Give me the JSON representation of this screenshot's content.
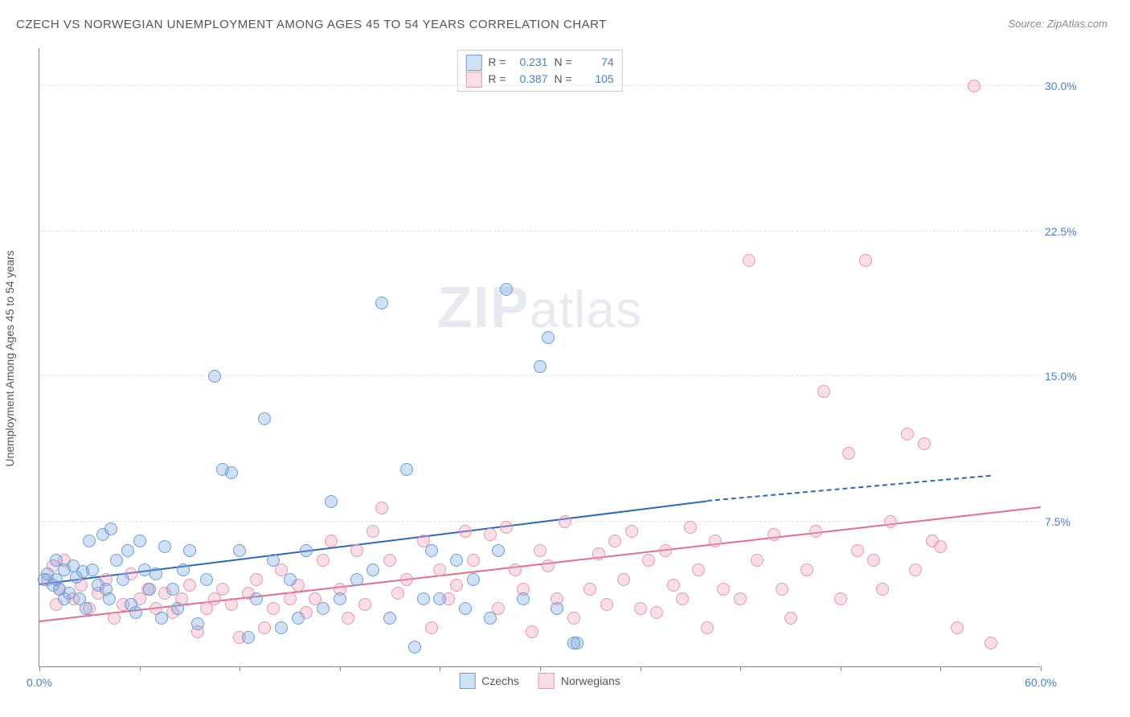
{
  "title": "CZECH VS NORWEGIAN UNEMPLOYMENT AMONG AGES 45 TO 54 YEARS CORRELATION CHART",
  "source_label": "Source:",
  "source_name": "ZipAtlas.com",
  "y_axis_label": "Unemployment Among Ages 45 to 54 years",
  "watermark_bold": "ZIP",
  "watermark_rest": "atlas",
  "chart": {
    "type": "scatter",
    "xlim": [
      0,
      60
    ],
    "ylim": [
      0,
      32
    ],
    "x_ticks": [
      0,
      6,
      12,
      18,
      24,
      30,
      36,
      42,
      48,
      54,
      60
    ],
    "x_tick_labels": {
      "0": "0.0%",
      "60": "60.0%"
    },
    "y_ticks": [
      7.5,
      15.0,
      22.5,
      30.0
    ],
    "y_tick_labels": [
      "7.5%",
      "15.0%",
      "22.5%",
      "30.0%"
    ],
    "background_color": "#ffffff",
    "grid_color": "#e0e0e0",
    "axis_color": "#888888",
    "tick_label_color": "#4a7fc9",
    "marker_radius": 8,
    "marker_stroke_width": 1.5,
    "title_color": "#555555",
    "title_fontsize": 15
  },
  "series": {
    "czechs": {
      "label": "Czechs",
      "fill_color": "rgba(120,165,225,0.35)",
      "stroke_color": "#6f9cd6",
      "trend": {
        "x0": 0,
        "y0": 4.2,
        "x1": 40,
        "y1": 8.5,
        "x1_dash": 57,
        "y1_dash": 9.8,
        "color": "#2f66b6",
        "width": 2
      },
      "stats": {
        "r": "0.231",
        "n": "74"
      },
      "points": [
        [
          1,
          4.5
        ],
        [
          1.2,
          4.0
        ],
        [
          1.5,
          5.0
        ],
        [
          1.8,
          3.8
        ],
        [
          2,
          5.2
        ],
        [
          2.2,
          4.6
        ],
        [
          2.4,
          3.5
        ],
        [
          2.6,
          4.9
        ],
        [
          3,
          6.5
        ],
        [
          3.2,
          5.0
        ],
        [
          3.5,
          4.2
        ],
        [
          3.8,
          6.8
        ],
        [
          4,
          4.0
        ],
        [
          4.3,
          7.1
        ],
        [
          4.6,
          5.5
        ],
        [
          5,
          4.5
        ],
        [
          5.3,
          6.0
        ],
        [
          5.5,
          3.2
        ],
        [
          6,
          6.5
        ],
        [
          6.3,
          5.0
        ],
        [
          6.6,
          4.0
        ],
        [
          7,
          4.8
        ],
        [
          7.3,
          2.5
        ],
        [
          7.5,
          6.2
        ],
        [
          8,
          4.0
        ],
        [
          8.3,
          3.0
        ],
        [
          8.6,
          5.0
        ],
        [
          9,
          6.0
        ],
        [
          9.5,
          2.2
        ],
        [
          10,
          4.5
        ],
        [
          10.5,
          15.0
        ],
        [
          11,
          10.2
        ],
        [
          11.5,
          10.0
        ],
        [
          12,
          6.0
        ],
        [
          12.5,
          1.5
        ],
        [
          13,
          3.5
        ],
        [
          13.5,
          12.8
        ],
        [
          14,
          5.5
        ],
        [
          14.5,
          2.0
        ],
        [
          15,
          4.5
        ],
        [
          15.5,
          2.5
        ],
        [
          16,
          6.0
        ],
        [
          17,
          3.0
        ],
        [
          17.5,
          8.5
        ],
        [
          18,
          3.5
        ],
        [
          19,
          4.5
        ],
        [
          20,
          5.0
        ],
        [
          20.5,
          18.8
        ],
        [
          21,
          2.5
        ],
        [
          22,
          10.2
        ],
        [
          22.5,
          1.0
        ],
        [
          23,
          3.5
        ],
        [
          23.5,
          6.0
        ],
        [
          24,
          3.5
        ],
        [
          25,
          5.5
        ],
        [
          25.5,
          3.0
        ],
        [
          26,
          4.5
        ],
        [
          27,
          2.5
        ],
        [
          27.5,
          6.0
        ],
        [
          28,
          19.5
        ],
        [
          29,
          3.5
        ],
        [
          30,
          15.5
        ],
        [
          30.5,
          17.0
        ],
        [
          31,
          3.0
        ],
        [
          32,
          1.2
        ],
        [
          32.2,
          1.2
        ],
        [
          4.2,
          3.5
        ],
        [
          5.8,
          2.8
        ],
        [
          2.8,
          3.0
        ],
        [
          1.5,
          3.5
        ],
        [
          0.8,
          4.2
        ],
        [
          0.5,
          4.8
        ],
        [
          1.0,
          5.5
        ],
        [
          0.3,
          4.5
        ]
      ]
    },
    "norwegians": {
      "label": "Norwegians",
      "fill_color": "rgba(240,160,185,0.35)",
      "stroke_color": "#e497ad",
      "trend": {
        "x0": 0,
        "y0": 2.3,
        "x1": 60,
        "y1": 8.2,
        "color": "#e06e8e",
        "width": 2
      },
      "stats": {
        "r": "0.387",
        "n": "105"
      },
      "points": [
        [
          0.5,
          4.5
        ],
        [
          0.8,
          5.2
        ],
        [
          1,
          3.2
        ],
        [
          1.2,
          4.0
        ],
        [
          1.5,
          5.5
        ],
        [
          2,
          3.5
        ],
        [
          2.5,
          4.2
        ],
        [
          3,
          3.0
        ],
        [
          3.5,
          3.8
        ],
        [
          4,
          4.5
        ],
        [
          4.5,
          2.5
        ],
        [
          5,
          3.2
        ],
        [
          5.5,
          4.8
        ],
        [
          6,
          3.5
        ],
        [
          6.5,
          4.0
        ],
        [
          7,
          3.0
        ],
        [
          7.5,
          3.8
        ],
        [
          8,
          2.8
        ],
        [
          8.5,
          3.5
        ],
        [
          9,
          4.2
        ],
        [
          9.5,
          1.8
        ],
        [
          10,
          3.0
        ],
        [
          10.5,
          3.5
        ],
        [
          11,
          4.0
        ],
        [
          11.5,
          3.2
        ],
        [
          12,
          1.5
        ],
        [
          12.5,
          3.8
        ],
        [
          13,
          4.5
        ],
        [
          13.5,
          2.0
        ],
        [
          14,
          3.0
        ],
        [
          14.5,
          5.0
        ],
        [
          15,
          3.5
        ],
        [
          15.5,
          4.2
        ],
        [
          16,
          2.8
        ],
        [
          16.5,
          3.5
        ],
        [
          17,
          5.5
        ],
        [
          17.5,
          6.5
        ],
        [
          18,
          4.0
        ],
        [
          18.5,
          2.5
        ],
        [
          19,
          6.0
        ],
        [
          19.5,
          3.2
        ],
        [
          20,
          7.0
        ],
        [
          20.5,
          8.2
        ],
        [
          21,
          5.5
        ],
        [
          21.5,
          3.8
        ],
        [
          22,
          4.5
        ],
        [
          23,
          6.5
        ],
        [
          23.5,
          2.0
        ],
        [
          24,
          5.0
        ],
        [
          24.5,
          3.5
        ],
        [
          25,
          4.2
        ],
        [
          25.5,
          7.0
        ],
        [
          26,
          5.5
        ],
        [
          27,
          6.8
        ],
        [
          27.5,
          3.0
        ],
        [
          28,
          7.2
        ],
        [
          28.5,
          5.0
        ],
        [
          29,
          4.0
        ],
        [
          29.5,
          1.8
        ],
        [
          30,
          6.0
        ],
        [
          30.5,
          5.2
        ],
        [
          31,
          3.5
        ],
        [
          31.5,
          7.5
        ],
        [
          32,
          2.5
        ],
        [
          33,
          4.0
        ],
        [
          33.5,
          5.8
        ],
        [
          34,
          3.2
        ],
        [
          34.5,
          6.5
        ],
        [
          35,
          4.5
        ],
        [
          35.5,
          7.0
        ],
        [
          36,
          3.0
        ],
        [
          36.5,
          5.5
        ],
        [
          37,
          2.8
        ],
        [
          37.5,
          6.0
        ],
        [
          38,
          4.2
        ],
        [
          38.5,
          3.5
        ],
        [
          39,
          7.2
        ],
        [
          39.5,
          5.0
        ],
        [
          40,
          2.0
        ],
        [
          40.5,
          6.5
        ],
        [
          41,
          4.0
        ],
        [
          42,
          3.5
        ],
        [
          42.5,
          21.0
        ],
        [
          43,
          5.5
        ],
        [
          44,
          6.8
        ],
        [
          44.5,
          4.0
        ],
        [
          45,
          2.5
        ],
        [
          46,
          5.0
        ],
        [
          46.5,
          7.0
        ],
        [
          47,
          14.2
        ],
        [
          48,
          3.5
        ],
        [
          48.5,
          11.0
        ],
        [
          49,
          6.0
        ],
        [
          49.5,
          21.0
        ],
        [
          50,
          5.5
        ],
        [
          50.5,
          4.0
        ],
        [
          51,
          7.5
        ],
        [
          52,
          12.0
        ],
        [
          52.5,
          5.0
        ],
        [
          53,
          11.5
        ],
        [
          54,
          6.2
        ],
        [
          55,
          2.0
        ],
        [
          56,
          30.0
        ],
        [
          57,
          1.2
        ],
        [
          53.5,
          6.5
        ]
      ]
    }
  },
  "stats_labels": {
    "r": "R =",
    "n": "N ="
  }
}
